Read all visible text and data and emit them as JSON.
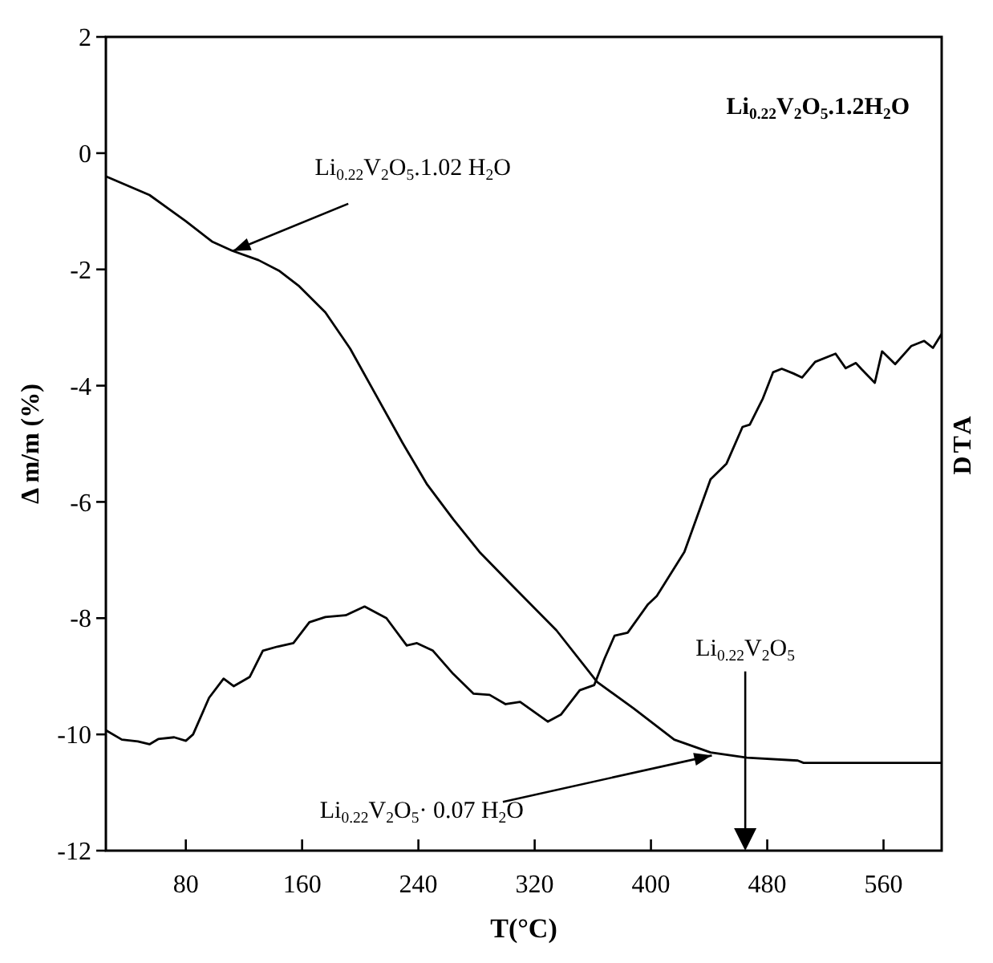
{
  "chart_data": {
    "type": "line",
    "xlabel": "T(°C)",
    "ylabel": "Δ m/m (%)",
    "y2label": "DTA",
    "xlim": [
      25,
      600
    ],
    "xticks": [
      80,
      160,
      240,
      320,
      400,
      480,
      560
    ],
    "ylim": [
      -12,
      2
    ],
    "yticks": [
      2,
      0,
      -2,
      -4,
      -6,
      -8,
      -10,
      -12
    ],
    "grid": false,
    "marker": "none",
    "line_style": "solid",
    "series": [
      {
        "color": "#000000",
        "x": [
          25,
          55,
          80,
          98,
          112,
          130,
          144,
          158,
          176,
          193,
          211,
          229,
          246,
          264,
          282,
          303,
          335,
          363,
          388,
          416,
          441,
          466,
          501,
          505,
          600
        ],
        "values": [
          -0.4,
          -0.72,
          -1.17,
          -1.52,
          -1.68,
          -1.84,
          -2.02,
          -2.29,
          -2.74,
          -3.36,
          -4.17,
          -4.98,
          -5.7,
          -6.3,
          -6.86,
          -7.4,
          -8.21,
          -9.1,
          -9.55,
          -10.09,
          -10.31,
          -10.4,
          -10.45,
          -10.49,
          -10.49
        ]
      },
      {
        "color": "#000000",
        "x": [
          25,
          36,
          47,
          55,
          61,
          72,
          80,
          85,
          96,
          106,
          113,
          124,
          133,
          143,
          154,
          165,
          176,
          190,
          203,
          218,
          232,
          239,
          250,
          264,
          278,
          289,
          300,
          310,
          329,
          338,
          351,
          361,
          368,
          375,
          384,
          398,
          404,
          423,
          441,
          452,
          463,
          468,
          477,
          484,
          490,
          498,
          504,
          513,
          527,
          534,
          541,
          545,
          554,
          559,
          568,
          579,
          588,
          594,
          600
        ],
        "values": [
          -9.93,
          -10.09,
          -10.12,
          -10.17,
          -10.08,
          -10.05,
          -10.11,
          -10.0,
          -9.37,
          -9.04,
          -9.17,
          -9.01,
          -8.56,
          -8.49,
          -8.43,
          -8.07,
          -7.98,
          -7.95,
          -7.8,
          -8.0,
          -8.47,
          -8.43,
          -8.56,
          -8.96,
          -9.3,
          -9.32,
          -9.48,
          -9.44,
          -9.78,
          -9.66,
          -9.24,
          -9.15,
          -8.7,
          -8.3,
          -8.25,
          -7.76,
          -7.62,
          -6.86,
          -5.61,
          -5.34,
          -4.71,
          -4.67,
          -4.22,
          -3.77,
          -3.71,
          -3.79,
          -3.86,
          -3.59,
          -3.45,
          -3.7,
          -3.61,
          -3.72,
          -3.95,
          -3.41,
          -3.63,
          -3.32,
          -3.23,
          -3.35,
          -3.11
        ]
      }
    ],
    "annotations": [
      "Li$_{0.22}$V$_{2}$O$_{5}$.1.2H$_{2}$O",
      "Li$_{0.22}$V$_{2}$O$_{5}$.1.02 H$_{2}$O",
      "Li$_{0.22}$V$_{2}$O$_{5}$",
      "Li$_{0.22}$V$_{2}$O$_{5}$· 0.07 H$_{2}$O"
    ]
  }
}
